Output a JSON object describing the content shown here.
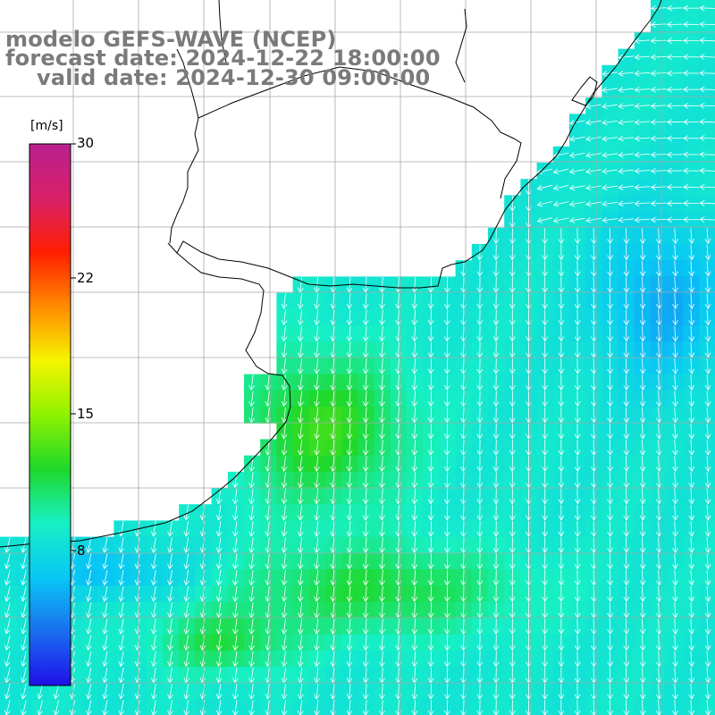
{
  "title": {
    "model": "modelo GEFS-WAVE (NCEP)",
    "forecast": "forecast date: 2024-12-22 18:00:00",
    "valid": "valid date: 2024-12-30 09:00:00"
  },
  "colorbar": {
    "unit": "[m/s]",
    "min": 0,
    "max": 30,
    "labels": [
      "30",
      "22",
      "15",
      "8"
    ],
    "label_values": [
      30,
      22,
      15,
      8
    ],
    "gradient": [
      "#1e10e8",
      "#1a6ef0",
      "#08c8f4",
      "#17f0c4",
      "#1fd82a",
      "#8ff200",
      "#f6f400",
      "#ff8a00",
      "#ff1e00",
      "#d8206a",
      "#b8208e"
    ]
  },
  "map_colors": {
    "land": "#ffffff",
    "coast": "#000000",
    "grid": "#a8a8a8",
    "arrow": "#ffffff"
  },
  "field": {
    "quantity": "wind speed",
    "dominant_direction": "from north (arrows pointing south)",
    "range_ms": [
      3,
      14
    ]
  }
}
